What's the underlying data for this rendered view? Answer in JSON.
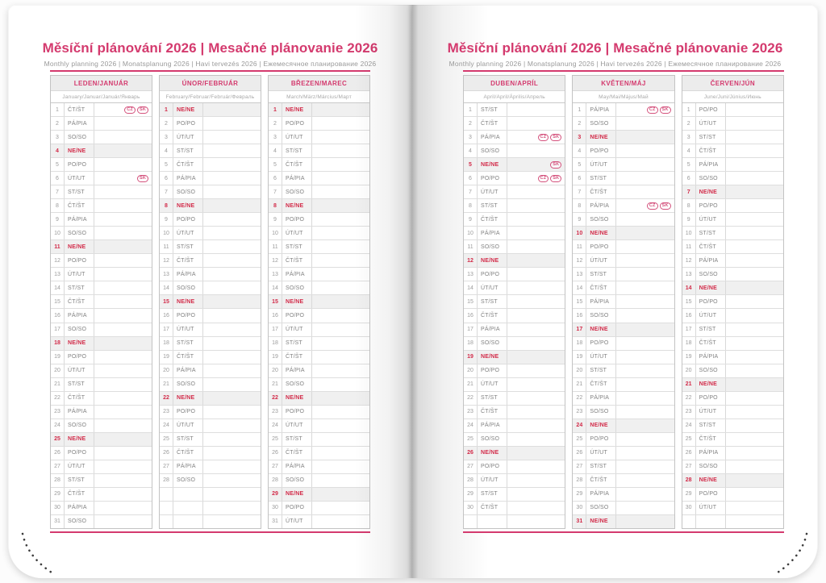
{
  "colors": {
    "accent": "#d43a6e",
    "holiday": "#d22b49",
    "badge": "#d4517c"
  },
  "left_page": {
    "title": "Měsíční plánování 2026 | Mesačné plánovanie 2026",
    "subtitle": "Monthly planning 2026 | Monatsplanung 2026 | Havi tervezés 2026 | Ежемесячное планирование 2026"
  },
  "right_page": {
    "title": "Měsíční plánování 2026 | Mesačné plánovanie 2026",
    "subtitle": "Monthly planning 2026 | Monatsplanung 2026 | Havi tervezés 2026 | Ежемесячное планирование 2026"
  },
  "months": [
    {
      "name": "LEDEN/JANUÁR",
      "languages": "January/Januar/Január/Январь",
      "trailing_blank_rows": 0,
      "days": [
        {
          "n": "1",
          "d": "ČT/ŠT",
          "b": [
            "CZ",
            "SK"
          ]
        },
        {
          "n": "2",
          "d": "PÁ/PIA"
        },
        {
          "n": "3",
          "d": "SO/SO"
        },
        {
          "n": "4",
          "d": "NE/NE"
        },
        {
          "n": "5",
          "d": "PO/PO"
        },
        {
          "n": "6",
          "d": "ÚT/UT",
          "b": [
            "SK"
          ]
        },
        {
          "n": "7",
          "d": "ST/ST"
        },
        {
          "n": "8",
          "d": "ČT/ŠT"
        },
        {
          "n": "9",
          "d": "PÁ/PIA"
        },
        {
          "n": "10",
          "d": "SO/SO"
        },
        {
          "n": "11",
          "d": "NE/NE"
        },
        {
          "n": "12",
          "d": "PO/PO"
        },
        {
          "n": "13",
          "d": "ÚT/UT"
        },
        {
          "n": "14",
          "d": "ST/ST"
        },
        {
          "n": "15",
          "d": "ČT/ŠT"
        },
        {
          "n": "16",
          "d": "PÁ/PIA"
        },
        {
          "n": "17",
          "d": "SO/SO"
        },
        {
          "n": "18",
          "d": "NE/NE"
        },
        {
          "n": "19",
          "d": "PO/PO"
        },
        {
          "n": "20",
          "d": "ÚT/UT"
        },
        {
          "n": "21",
          "d": "ST/ST"
        },
        {
          "n": "22",
          "d": "ČT/ŠT"
        },
        {
          "n": "23",
          "d": "PÁ/PIA"
        },
        {
          "n": "24",
          "d": "SO/SO"
        },
        {
          "n": "25",
          "d": "NE/NE"
        },
        {
          "n": "26",
          "d": "PO/PO"
        },
        {
          "n": "27",
          "d": "ÚT/UT"
        },
        {
          "n": "28",
          "d": "ST/ST"
        },
        {
          "n": "29",
          "d": "ČT/ŠT"
        },
        {
          "n": "30",
          "d": "PÁ/PIA"
        },
        {
          "n": "31",
          "d": "SO/SO"
        }
      ]
    },
    {
      "name": "ÚNOR/FEBRUÁR",
      "languages": "February/Februar/Február/Февраль",
      "trailing_blank_rows": 3,
      "days": [
        {
          "n": "1",
          "d": "NE/NE"
        },
        {
          "n": "2",
          "d": "PO/PO"
        },
        {
          "n": "3",
          "d": "ÚT/UT"
        },
        {
          "n": "4",
          "d": "ST/ST"
        },
        {
          "n": "5",
          "d": "ČT/ŠT"
        },
        {
          "n": "6",
          "d": "PÁ/PIA"
        },
        {
          "n": "7",
          "d": "SO/SO"
        },
        {
          "n": "8",
          "d": "NE/NE"
        },
        {
          "n": "9",
          "d": "PO/PO"
        },
        {
          "n": "10",
          "d": "ÚT/UT"
        },
        {
          "n": "11",
          "d": "ST/ST"
        },
        {
          "n": "12",
          "d": "ČT/ŠT"
        },
        {
          "n": "13",
          "d": "PÁ/PIA"
        },
        {
          "n": "14",
          "d": "SO/SO"
        },
        {
          "n": "15",
          "d": "NE/NE"
        },
        {
          "n": "16",
          "d": "PO/PO"
        },
        {
          "n": "17",
          "d": "ÚT/UT"
        },
        {
          "n": "18",
          "d": "ST/ST"
        },
        {
          "n": "19",
          "d": "ČT/ŠT"
        },
        {
          "n": "20",
          "d": "PÁ/PIA"
        },
        {
          "n": "21",
          "d": "SO/SO"
        },
        {
          "n": "22",
          "d": "NE/NE"
        },
        {
          "n": "23",
          "d": "PO/PO"
        },
        {
          "n": "24",
          "d": "ÚT/UT"
        },
        {
          "n": "25",
          "d": "ST/ST"
        },
        {
          "n": "26",
          "d": "ČT/ŠT"
        },
        {
          "n": "27",
          "d": "PÁ/PIA"
        },
        {
          "n": "28",
          "d": "SO/SO"
        }
      ]
    },
    {
      "name": "BŘEZEN/MAREC",
      "languages": "March/März/Március/Март",
      "trailing_blank_rows": 0,
      "days": [
        {
          "n": "1",
          "d": "NE/NE"
        },
        {
          "n": "2",
          "d": "PO/PO"
        },
        {
          "n": "3",
          "d": "ÚT/UT"
        },
        {
          "n": "4",
          "d": "ST/ST"
        },
        {
          "n": "5",
          "d": "ČT/ŠT"
        },
        {
          "n": "6",
          "d": "PÁ/PIA"
        },
        {
          "n": "7",
          "d": "SO/SO"
        },
        {
          "n": "8",
          "d": "NE/NE"
        },
        {
          "n": "9",
          "d": "PO/PO"
        },
        {
          "n": "10",
          "d": "ÚT/UT"
        },
        {
          "n": "11",
          "d": "ST/ST"
        },
        {
          "n": "12",
          "d": "ČT/ŠT"
        },
        {
          "n": "13",
          "d": "PÁ/PIA"
        },
        {
          "n": "14",
          "d": "SO/SO"
        },
        {
          "n": "15",
          "d": "NE/NE"
        },
        {
          "n": "16",
          "d": "PO/PO"
        },
        {
          "n": "17",
          "d": "ÚT/UT"
        },
        {
          "n": "18",
          "d": "ST/ST"
        },
        {
          "n": "19",
          "d": "ČT/ŠT"
        },
        {
          "n": "20",
          "d": "PÁ/PIA"
        },
        {
          "n": "21",
          "d": "SO/SO"
        },
        {
          "n": "22",
          "d": "NE/NE"
        },
        {
          "n": "23",
          "d": "PO/PO"
        },
        {
          "n": "24",
          "d": "ÚT/UT"
        },
        {
          "n": "25",
          "d": "ST/ST"
        },
        {
          "n": "26",
          "d": "ČT/ŠT"
        },
        {
          "n": "27",
          "d": "PÁ/PIA"
        },
        {
          "n": "28",
          "d": "SO/SO"
        },
        {
          "n": "29",
          "d": "NE/NE"
        },
        {
          "n": "30",
          "d": "PO/PO"
        },
        {
          "n": "31",
          "d": "ÚT/UT"
        }
      ]
    },
    {
      "name": "DUBEN/APRÍL",
      "languages": "April/April/Április/Апрель",
      "trailing_blank_rows": 1,
      "days": [
        {
          "n": "1",
          "d": "ST/ST"
        },
        {
          "n": "2",
          "d": "ČT/ŠT"
        },
        {
          "n": "3",
          "d": "PÁ/PIA",
          "b": [
            "CZ",
            "SK"
          ]
        },
        {
          "n": "4",
          "d": "SO/SO"
        },
        {
          "n": "5",
          "d": "NE/NE",
          "b": [
            "SK"
          ]
        },
        {
          "n": "6",
          "d": "PO/PO",
          "b": [
            "CZ",
            "SK"
          ]
        },
        {
          "n": "7",
          "d": "ÚT/UT"
        },
        {
          "n": "8",
          "d": "ST/ST"
        },
        {
          "n": "9",
          "d": "ČT/ŠT"
        },
        {
          "n": "10",
          "d": "PÁ/PIA"
        },
        {
          "n": "11",
          "d": "SO/SO"
        },
        {
          "n": "12",
          "d": "NE/NE"
        },
        {
          "n": "13",
          "d": "PO/PO"
        },
        {
          "n": "14",
          "d": "ÚT/UT"
        },
        {
          "n": "15",
          "d": "ST/ST"
        },
        {
          "n": "16",
          "d": "ČT/ŠT"
        },
        {
          "n": "17",
          "d": "PÁ/PIA"
        },
        {
          "n": "18",
          "d": "SO/SO"
        },
        {
          "n": "19",
          "d": "NE/NE"
        },
        {
          "n": "20",
          "d": "PO/PO"
        },
        {
          "n": "21",
          "d": "ÚT/UT"
        },
        {
          "n": "22",
          "d": "ST/ST"
        },
        {
          "n": "23",
          "d": "ČT/ŠT"
        },
        {
          "n": "24",
          "d": "PÁ/PIA"
        },
        {
          "n": "25",
          "d": "SO/SO"
        },
        {
          "n": "26",
          "d": "NE/NE"
        },
        {
          "n": "27",
          "d": "PO/PO"
        },
        {
          "n": "28",
          "d": "ÚT/UT"
        },
        {
          "n": "29",
          "d": "ST/ST"
        },
        {
          "n": "30",
          "d": "ČT/ŠT"
        }
      ]
    },
    {
      "name": "KVĚTEN/MÁJ",
      "languages": "May/Mai/Május/Май",
      "trailing_blank_rows": 0,
      "days": [
        {
          "n": "1",
          "d": "PÁ/PIA",
          "b": [
            "CZ",
            "SK"
          ]
        },
        {
          "n": "2",
          "d": "SO/SO"
        },
        {
          "n": "3",
          "d": "NE/NE"
        },
        {
          "n": "4",
          "d": "PO/PO"
        },
        {
          "n": "5",
          "d": "ÚT/UT"
        },
        {
          "n": "6",
          "d": "ST/ST"
        },
        {
          "n": "7",
          "d": "ČT/ŠT"
        },
        {
          "n": "8",
          "d": "PÁ/PIA",
          "b": [
            "CZ",
            "SK"
          ]
        },
        {
          "n": "9",
          "d": "SO/SO"
        },
        {
          "n": "10",
          "d": "NE/NE"
        },
        {
          "n": "11",
          "d": "PO/PO"
        },
        {
          "n": "12",
          "d": "ÚT/UT"
        },
        {
          "n": "13",
          "d": "ST/ST"
        },
        {
          "n": "14",
          "d": "ČT/ŠT"
        },
        {
          "n": "15",
          "d": "PÁ/PIA"
        },
        {
          "n": "16",
          "d": "SO/SO"
        },
        {
          "n": "17",
          "d": "NE/NE"
        },
        {
          "n": "18",
          "d": "PO/PO"
        },
        {
          "n": "19",
          "d": "ÚT/UT"
        },
        {
          "n": "20",
          "d": "ST/ST"
        },
        {
          "n": "21",
          "d": "ČT/ŠT"
        },
        {
          "n": "22",
          "d": "PÁ/PIA"
        },
        {
          "n": "23",
          "d": "SO/SO"
        },
        {
          "n": "24",
          "d": "NE/NE"
        },
        {
          "n": "25",
          "d": "PO/PO"
        },
        {
          "n": "26",
          "d": "ÚT/UT"
        },
        {
          "n": "27",
          "d": "ST/ST"
        },
        {
          "n": "28",
          "d": "ČT/ŠT"
        },
        {
          "n": "29",
          "d": "PÁ/PIA"
        },
        {
          "n": "30",
          "d": "SO/SO"
        },
        {
          "n": "31",
          "d": "NE/NE"
        }
      ]
    },
    {
      "name": "ČERVEN/JÚN",
      "languages": "June/Juni/Június/Июнь",
      "trailing_blank_rows": 1,
      "days": [
        {
          "n": "1",
          "d": "PO/PO"
        },
        {
          "n": "2",
          "d": "ÚT/UT"
        },
        {
          "n": "3",
          "d": "ST/ST"
        },
        {
          "n": "4",
          "d": "ČT/ŠT"
        },
        {
          "n": "5",
          "d": "PÁ/PIA"
        },
        {
          "n": "6",
          "d": "SO/SO"
        },
        {
          "n": "7",
          "d": "NE/NE"
        },
        {
          "n": "8",
          "d": "PO/PO"
        },
        {
          "n": "9",
          "d": "ÚT/UT"
        },
        {
          "n": "10",
          "d": "ST/ST"
        },
        {
          "n": "11",
          "d": "ČT/ŠT"
        },
        {
          "n": "12",
          "d": "PÁ/PIA"
        },
        {
          "n": "13",
          "d": "SO/SO"
        },
        {
          "n": "14",
          "d": "NE/NE"
        },
        {
          "n": "15",
          "d": "PO/PO"
        },
        {
          "n": "16",
          "d": "ÚT/UT"
        },
        {
          "n": "17",
          "d": "ST/ST"
        },
        {
          "n": "18",
          "d": "ČT/ŠT"
        },
        {
          "n": "19",
          "d": "PÁ/PIA"
        },
        {
          "n": "20",
          "d": "SO/SO"
        },
        {
          "n": "21",
          "d": "NE/NE"
        },
        {
          "n": "22",
          "d": "PO/PO"
        },
        {
          "n": "23",
          "d": "ÚT/UT"
        },
        {
          "n": "24",
          "d": "ST/ST"
        },
        {
          "n": "25",
          "d": "ČT/ŠT"
        },
        {
          "n": "26",
          "d": "PÁ/PIA"
        },
        {
          "n": "27",
          "d": "SO/SO"
        },
        {
          "n": "28",
          "d": "NE/NE"
        },
        {
          "n": "29",
          "d": "PO/PO"
        },
        {
          "n": "30",
          "d": "ÚT/UT"
        }
      ]
    }
  ]
}
